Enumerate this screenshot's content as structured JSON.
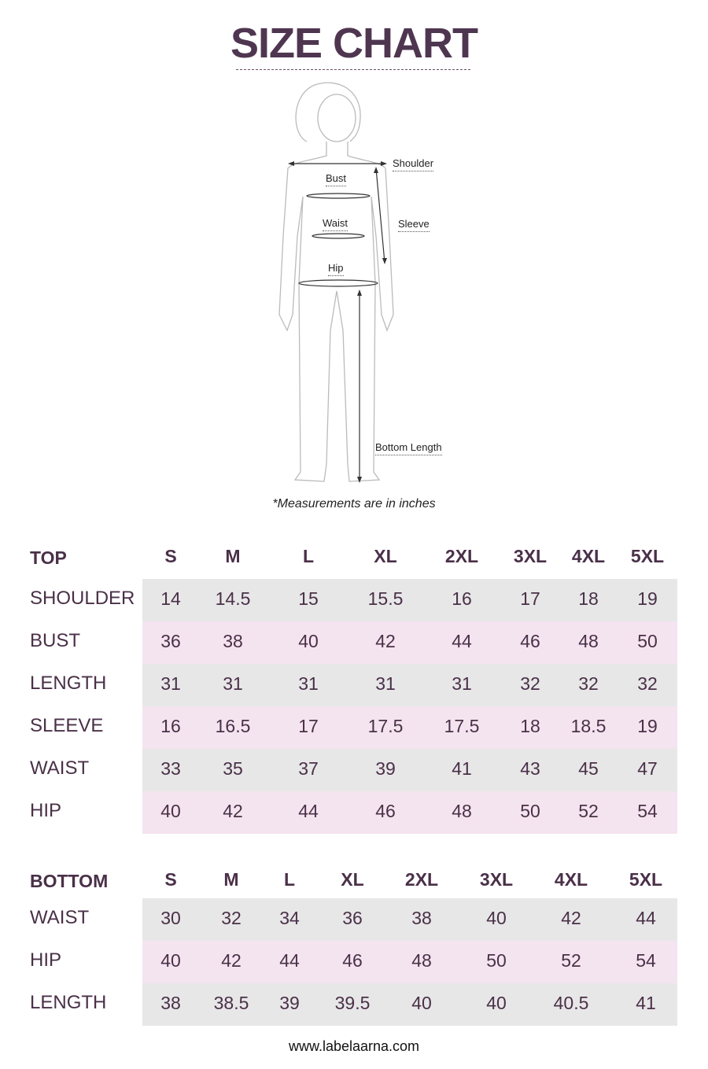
{
  "title": "SIZE CHART",
  "figure_labels": {
    "shoulder": "Shoulder",
    "bust": "Bust",
    "waist": "Waist",
    "sleeve": "Sleeve",
    "hip": "Hip",
    "bottom_length": "Bottom Length"
  },
  "note": "*Measurements are in inches",
  "colors": {
    "text": "#4a3048",
    "row_grey": "#e7e7e7",
    "row_pink": "#f4e4ef"
  },
  "top_table": {
    "heading": "TOP",
    "sizes": [
      "S",
      "M",
      "L",
      "XL",
      "2XL",
      "3XL",
      "4XL",
      "5XL"
    ],
    "rows": [
      {
        "label": "SHOULDER",
        "values": [
          "14",
          "14.5",
          "15",
          "15.5",
          "16",
          "17",
          "18",
          "19"
        ]
      },
      {
        "label": "BUST",
        "values": [
          "36",
          "38",
          "40",
          "42",
          "44",
          "46",
          "48",
          "50"
        ]
      },
      {
        "label": "LENGTH",
        "values": [
          "31",
          "31",
          "31",
          "31",
          "31",
          "32",
          "32",
          "32"
        ]
      },
      {
        "label": "SLEEVE",
        "values": [
          "16",
          "16.5",
          "17",
          "17.5",
          "17.5",
          "18",
          "18.5",
          "19"
        ]
      },
      {
        "label": "WAIST",
        "values": [
          "33",
          "35",
          "37",
          "39",
          "41",
          "43",
          "45",
          "47"
        ]
      },
      {
        "label": "HIP",
        "values": [
          "40",
          "42",
          "44",
          "46",
          "48",
          "50",
          "52",
          "54"
        ]
      }
    ]
  },
  "bottom_table": {
    "heading": "BOTTOM",
    "sizes": [
      "S",
      "M",
      "L",
      "XL",
      "2XL",
      "3XL",
      "4XL",
      "5XL"
    ],
    "rows": [
      {
        "label": "WAIST",
        "values": [
          "30",
          "32",
          "34",
          "36",
          "38",
          "40",
          "42",
          "44"
        ]
      },
      {
        "label": "HIP",
        "values": [
          "40",
          "42",
          "44",
          "46",
          "48",
          "50",
          "52",
          "54"
        ]
      },
      {
        "label": "LENGTH",
        "values": [
          "38",
          "38.5",
          "39",
          "39.5",
          "40",
          "40",
          "40.5",
          "41"
        ]
      }
    ]
  },
  "footer": "www.labelaarna.com"
}
